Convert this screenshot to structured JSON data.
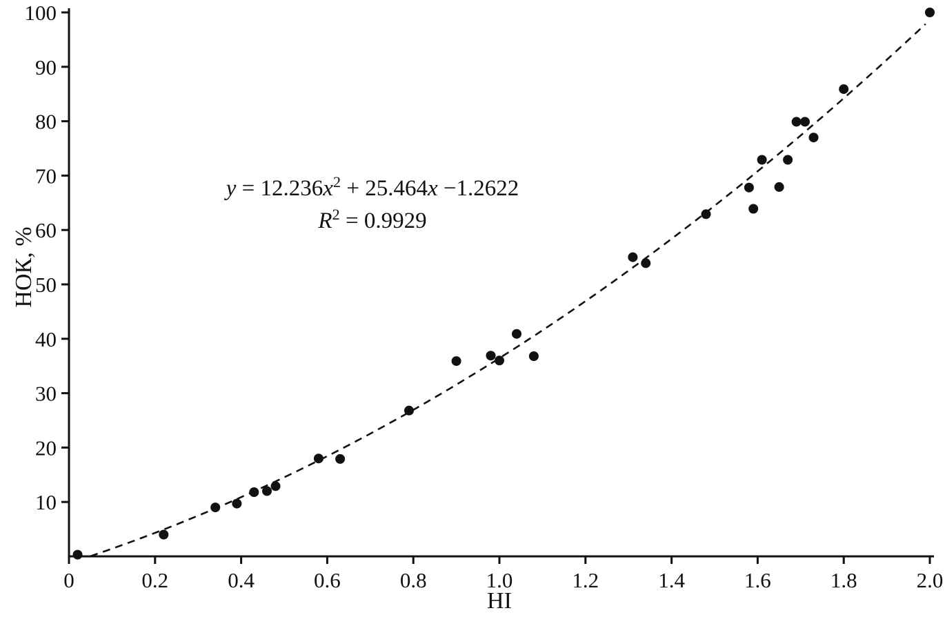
{
  "figure": {
    "background": "#ffffff",
    "ink": "#111111"
  },
  "chart_data": {
    "type": "scatter",
    "title": "",
    "xlabel": "HI",
    "ylabel": "НОК, %",
    "xlim": [
      0,
      2.0
    ],
    "ylim": [
      0,
      100
    ],
    "grid": false,
    "legend": null,
    "xticks": {
      "values": [
        0,
        0.2,
        0.4,
        0.6,
        0.8,
        1.0,
        1.2,
        1.4,
        1.6,
        1.8,
        2.0
      ],
      "labels": [
        "0",
        "0.2",
        "0.4",
        "0.6",
        "0.8",
        "1.0",
        "1.2",
        "1.4",
        "1.6",
        "1.8",
        "2.0"
      ]
    },
    "yticks": {
      "values": [
        10,
        20,
        30,
        40,
        50,
        60,
        70,
        80,
        90,
        100
      ],
      "labels": [
        "10",
        "20",
        "30",
        "40",
        "50",
        "60",
        "70",
        "80",
        "90",
        "100"
      ]
    },
    "points": [
      [
        0.02,
        0.3
      ],
      [
        0.22,
        4.0
      ],
      [
        0.34,
        9.0
      ],
      [
        0.39,
        9.7
      ],
      [
        0.43,
        11.8
      ],
      [
        0.46,
        12.0
      ],
      [
        0.48,
        12.9
      ],
      [
        0.58,
        18.0
      ],
      [
        0.63,
        17.9
      ],
      [
        0.79,
        26.8
      ],
      [
        0.9,
        35.9
      ],
      [
        0.98,
        36.9
      ],
      [
        1.0,
        36.0
      ],
      [
        1.04,
        40.9
      ],
      [
        1.08,
        36.8
      ],
      [
        1.31,
        55.0
      ],
      [
        1.34,
        53.9
      ],
      [
        1.48,
        62.9
      ],
      [
        1.58,
        67.8
      ],
      [
        1.59,
        63.9
      ],
      [
        1.61,
        72.9
      ],
      [
        1.65,
        67.9
      ],
      [
        1.67,
        72.9
      ],
      [
        1.69,
        79.9
      ],
      [
        1.71,
        79.9
      ],
      [
        1.73,
        77.0
      ],
      [
        1.8,
        85.9
      ],
      [
        2.0,
        100.0
      ]
    ],
    "marker": {
      "shape": "circle",
      "color": "#111111",
      "radius_px": 7
    },
    "trendline": {
      "kind": "quadratic",
      "coefficients": {
        "a": 12.236,
        "b": 25.464,
        "c": -1.2622
      },
      "r_squared": 0.9929,
      "line_style": "dashed",
      "color": "#111111",
      "domain": [
        0.05,
        2.0
      ]
    }
  },
  "annotation": {
    "line1": [
      {
        "t": "y",
        "i": true
      },
      {
        "t": " = 12.236"
      },
      {
        "t": "x",
        "i": true
      },
      {
        "t": "2",
        "sup": true
      },
      {
        "t": " + 25.464"
      },
      {
        "t": "x",
        "i": true
      },
      {
        "t": " −1.2622"
      }
    ],
    "line2": [
      {
        "t": "R",
        "i": true
      },
      {
        "t": "2",
        "sup": true
      },
      {
        "t": " = 0.9929"
      }
    ]
  }
}
